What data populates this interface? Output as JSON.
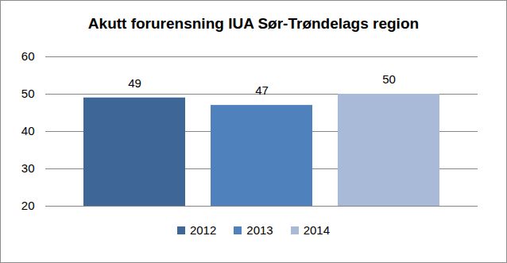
{
  "chart_data": {
    "type": "bar",
    "title": "Akutt forurensning IUA Sør-Trøndelags region",
    "categories": [
      "2012",
      "2013",
      "2014"
    ],
    "values": [
      49,
      47,
      50
    ],
    "colors": [
      "#3e6697",
      "#4f81bd",
      "#a9bad8"
    ],
    "ylim": [
      20,
      60
    ],
    "yticks": [
      20,
      30,
      40,
      50,
      60
    ],
    "grid": true,
    "data_labels": true,
    "legend": "bottom",
    "tick_labels": "y"
  }
}
